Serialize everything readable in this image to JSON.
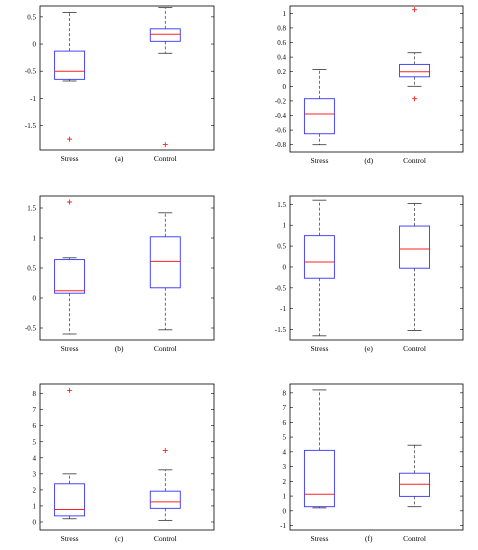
{
  "chart_data": [
    {
      "type": "box",
      "panel_label": "(a)",
      "categories": [
        "Stress",
        "Control"
      ],
      "ylim": [
        -1.95,
        0.7
      ],
      "yticks": [
        -1.5,
        -1,
        -0.5,
        0,
        0.5
      ],
      "ytick_labels": [
        "-1.5",
        "-1",
        "-0.5",
        "0",
        "0.5"
      ],
      "boxes": [
        {
          "whisker_low": -0.68,
          "q1": -0.65,
          "median": -0.5,
          "q3": -0.13,
          "whisker_high": 0.58,
          "outliers": [
            -1.75
          ]
        },
        {
          "whisker_low": -0.17,
          "q1": 0.05,
          "median": 0.18,
          "q3": 0.28,
          "whisker_high": 0.67,
          "outliers": [
            -1.85
          ]
        }
      ]
    },
    {
      "type": "box",
      "panel_label": "(d)",
      "categories": [
        "Stress",
        "Control"
      ],
      "ylim": [
        -0.9,
        1.1
      ],
      "yticks": [
        -0.8,
        -0.6,
        -0.4,
        -0.2,
        0,
        0.2,
        0.4,
        0.6,
        0.8,
        1
      ],
      "ytick_labels": [
        "-0.8",
        "-0.6",
        "-0.4",
        "-0.2",
        "0",
        "0.2",
        "0.4",
        "0.6",
        "0.8",
        "1"
      ],
      "boxes": [
        {
          "whisker_low": -0.8,
          "q1": -0.65,
          "median": -0.38,
          "q3": -0.17,
          "whisker_high": 0.23,
          "outliers": []
        },
        {
          "whisker_low": 0.0,
          "q1": 0.13,
          "median": 0.2,
          "q3": 0.3,
          "whisker_high": 0.46,
          "outliers": [
            1.05,
            -0.17
          ]
        }
      ]
    },
    {
      "type": "box",
      "panel_label": "(b)",
      "categories": [
        "Stress",
        "Control"
      ],
      "ylim": [
        -0.7,
        1.7
      ],
      "yticks": [
        -0.5,
        0,
        0.5,
        1,
        1.5
      ],
      "ytick_labels": [
        "-0.5",
        "0",
        "0.5",
        "1",
        "1.5"
      ],
      "boxes": [
        {
          "whisker_low": -0.6,
          "q1": 0.08,
          "median": 0.12,
          "q3": 0.64,
          "whisker_high": 0.67,
          "outliers": [
            1.6
          ]
        },
        {
          "whisker_low": -0.53,
          "q1": 0.17,
          "median": 0.61,
          "q3": 1.02,
          "whisker_high": 1.42,
          "outliers": []
        }
      ]
    },
    {
      "type": "box",
      "panel_label": "(e)",
      "categories": [
        "Stress",
        "Control"
      ],
      "ylim": [
        -1.75,
        1.7
      ],
      "yticks": [
        -1.5,
        -1,
        -0.5,
        0,
        0.5,
        1,
        1.5
      ],
      "ytick_labels": [
        "-1.5",
        "-1",
        "-0.5",
        "0",
        "0.5",
        "1",
        "1.5"
      ],
      "boxes": [
        {
          "whisker_low": -1.65,
          "q1": -0.27,
          "median": 0.12,
          "q3": 0.75,
          "whisker_high": 1.6,
          "outliers": []
        },
        {
          "whisker_low": -1.52,
          "q1": -0.03,
          "median": 0.43,
          "q3": 0.98,
          "whisker_high": 1.52,
          "outliers": []
        }
      ]
    },
    {
      "type": "box",
      "panel_label": "(c)",
      "categories": [
        "Stress",
        "Control"
      ],
      "ylim": [
        -0.5,
        8.6
      ],
      "yticks": [
        0,
        1,
        2,
        3,
        4,
        5,
        6,
        7,
        8
      ],
      "ytick_labels": [
        "0",
        "1",
        "2",
        "3",
        "4",
        "5",
        "6",
        "7",
        "8"
      ],
      "boxes": [
        {
          "whisker_low": 0.2,
          "q1": 0.38,
          "median": 0.78,
          "q3": 2.38,
          "whisker_high": 3.0,
          "outliers": [
            8.2
          ]
        },
        {
          "whisker_low": 0.1,
          "q1": 0.85,
          "median": 1.25,
          "q3": 1.92,
          "whisker_high": 3.25,
          "outliers": [
            4.45
          ]
        }
      ]
    },
    {
      "type": "box",
      "panel_label": "(f)",
      "categories": [
        "Stress",
        "Control"
      ],
      "ylim": [
        -1.3,
        8.6
      ],
      "yticks": [
        -1,
        0,
        1,
        2,
        3,
        4,
        5,
        6,
        7,
        8
      ],
      "ytick_labels": [
        "-1",
        "0",
        "1",
        "2",
        "3",
        "4",
        "5",
        "6",
        "7",
        "8"
      ],
      "boxes": [
        {
          "whisker_low": 0.2,
          "q1": 0.28,
          "median": 1.12,
          "q3": 4.1,
          "whisker_high": 8.2,
          "outliers": []
        },
        {
          "whisker_low": 0.28,
          "q1": 0.98,
          "median": 1.8,
          "q3": 2.55,
          "whisker_high": 4.45,
          "outliers": []
        }
      ]
    }
  ],
  "colors": {
    "box": "#3333ff",
    "median": "#ff2020",
    "whisker": "#333333",
    "outlier": "#ff2020",
    "axes": "#000000"
  }
}
